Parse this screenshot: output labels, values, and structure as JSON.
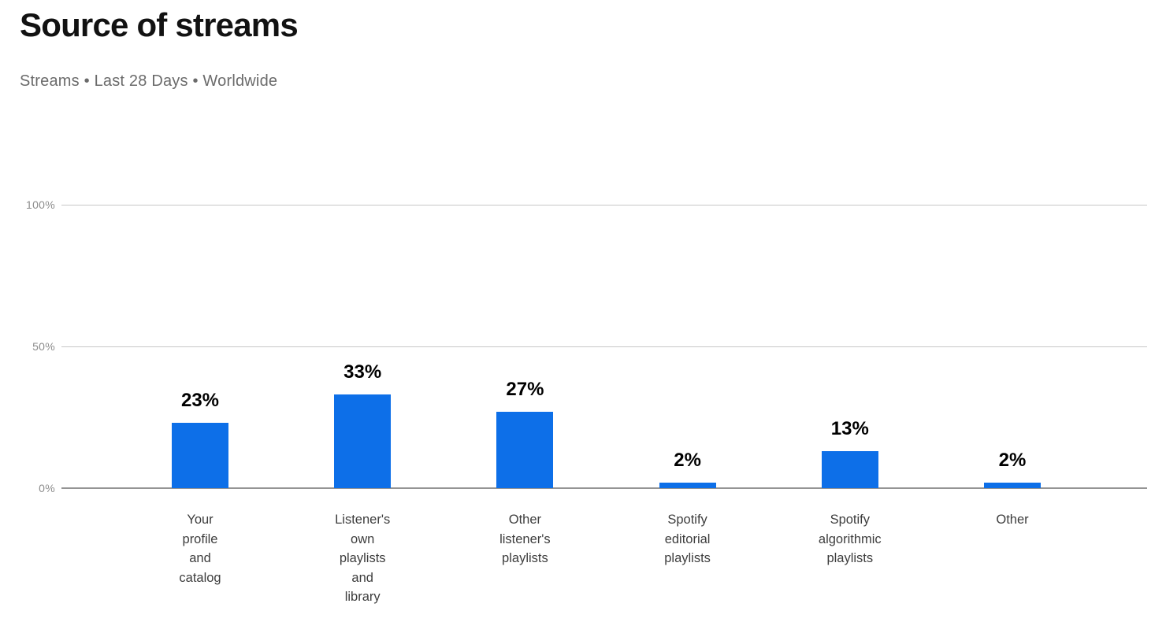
{
  "page": {
    "title": "Source of streams",
    "subtitle": "Streams • Last 28 Days • Worldwide"
  },
  "chart_data": {
    "type": "bar",
    "title": "Source of streams",
    "subtitle": "Streams • Last 28 Days • Worldwide",
    "unit": "%",
    "categories": [
      "Your profile and catalog",
      "Listener's own playlists and library",
      "Other listener's playlists",
      "Spotify editorial playlists",
      "Spotify algorithmic playlists",
      "Other"
    ],
    "category_lines": [
      [
        "Your",
        "profile",
        "and",
        "catalog"
      ],
      [
        "Listener's",
        "own",
        "playlists",
        "and",
        "library"
      ],
      [
        "Other",
        "listener's",
        "playlists"
      ],
      [
        "Spotify",
        "editorial",
        "playlists"
      ],
      [
        "Spotify",
        "algorithmic",
        "playlists"
      ],
      [
        "Other"
      ]
    ],
    "values": [
      23,
      33,
      27,
      2,
      13,
      2
    ],
    "value_labels": [
      "23%",
      "33%",
      "27%",
      "2%",
      "13%",
      "2%"
    ],
    "y_ticks": [
      {
        "label": "100%",
        "value": 100
      },
      {
        "label": "50%",
        "value": 50
      },
      {
        "label": "0%",
        "value": 0
      }
    ],
    "ylim": [
      0,
      100
    ],
    "grid": "horizontal",
    "legend": "none",
    "colors": {
      "bar": "#0d6fe8",
      "title": "#121212",
      "subtitle": "#6b6b6b",
      "axis_tick": "#8c8c8c",
      "gridline": "#c7c7c7",
      "baseline": "#949494",
      "value_label": "#000000",
      "category_label": "#3d3d3d",
      "background": "#ffffff"
    }
  }
}
